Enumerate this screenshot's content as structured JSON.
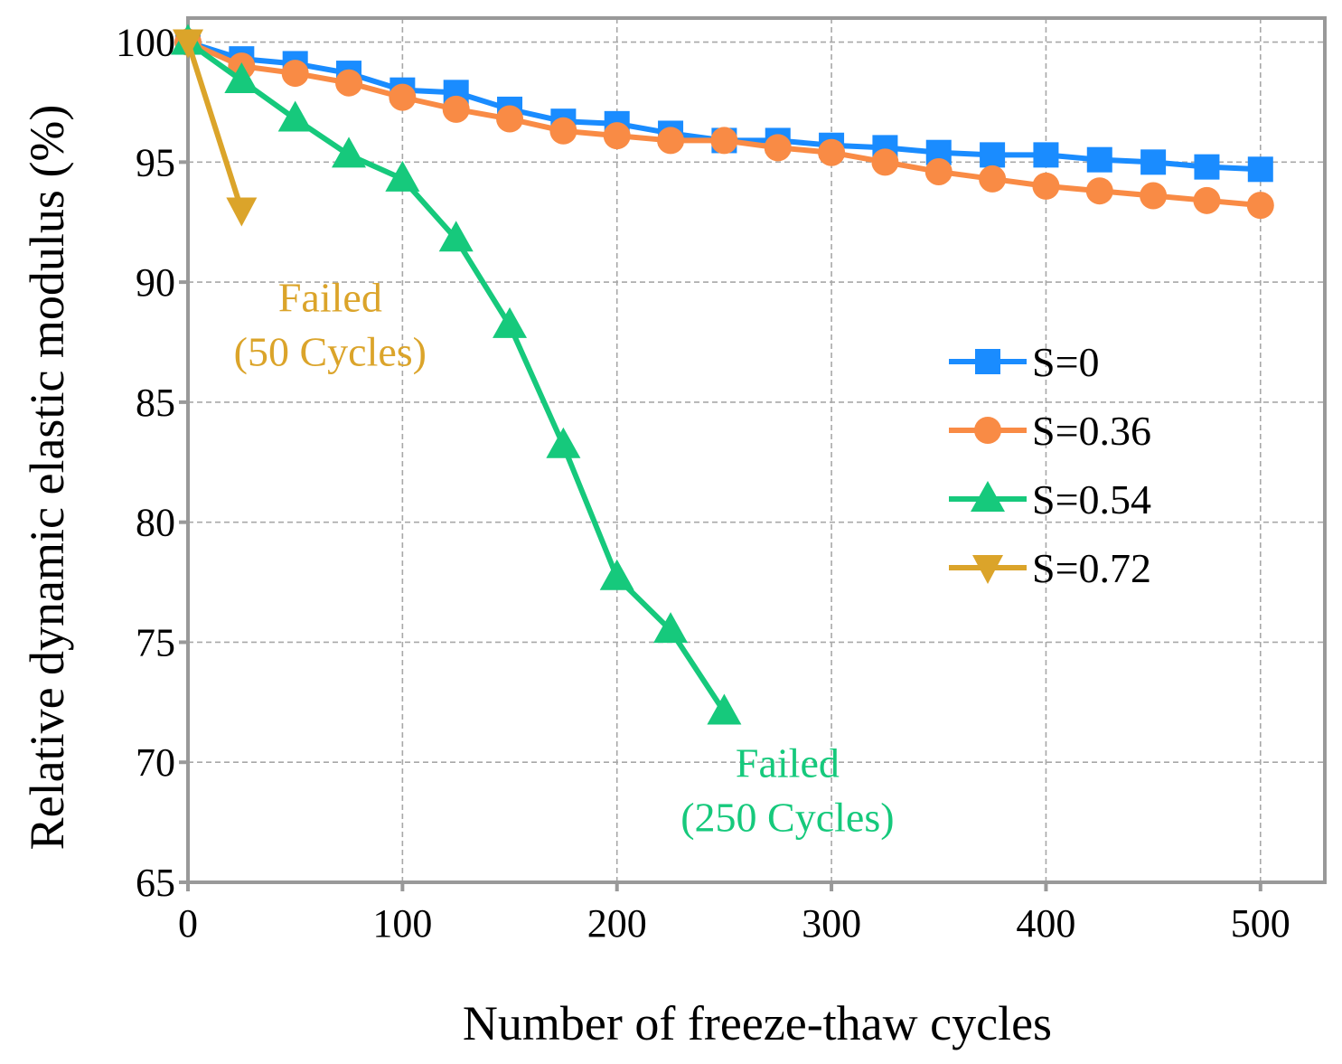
{
  "chart_data": {
    "type": "line",
    "title": "",
    "xlabel": "Number of freeze-thaw cycles",
    "ylabel": "Relative dynamic elastic modulus (%)",
    "xlim": [
      0,
      530
    ],
    "ylim": [
      65,
      101
    ],
    "x_ticks": [
      0,
      100,
      200,
      300,
      400,
      500
    ],
    "x_tick_labels": [
      "0",
      "100",
      "200",
      "300",
      "400",
      "500"
    ],
    "y_ticks": [
      65,
      70,
      75,
      80,
      85,
      90,
      95,
      100
    ],
    "y_tick_labels": [
      "65",
      "70",
      "75",
      "80",
      "85",
      "90",
      "95",
      "100"
    ],
    "grid": true,
    "legend_position": "right",
    "series": [
      {
        "name": "S=0",
        "color": "#1a8cff",
        "marker": "square",
        "x": [
          0,
          25,
          50,
          75,
          100,
          125,
          150,
          175,
          200,
          225,
          250,
          275,
          300,
          325,
          350,
          375,
          400,
          425,
          450,
          475,
          500
        ],
        "values": [
          100,
          99.3,
          99.1,
          98.7,
          98.0,
          97.9,
          97.2,
          96.7,
          96.6,
          96.2,
          95.9,
          95.9,
          95.7,
          95.6,
          95.4,
          95.3,
          95.3,
          95.1,
          95.0,
          94.8,
          94.7
        ]
      },
      {
        "name": "S=0.36",
        "color": "#f98b45",
        "marker": "circle",
        "x": [
          0,
          25,
          50,
          75,
          100,
          125,
          150,
          175,
          200,
          225,
          250,
          275,
          300,
          325,
          350,
          375,
          400,
          425,
          450,
          475,
          500
        ],
        "values": [
          100,
          99.0,
          98.7,
          98.3,
          97.7,
          97.2,
          96.8,
          96.3,
          96.1,
          95.9,
          95.9,
          95.6,
          95.4,
          95.0,
          94.6,
          94.3,
          94.0,
          93.8,
          93.6,
          93.4,
          93.2
        ]
      },
      {
        "name": "S=0.54",
        "color": "#16c97c",
        "marker": "triangle-up",
        "x": [
          0,
          25,
          50,
          75,
          100,
          125,
          150,
          175,
          200,
          225,
          250
        ],
        "values": [
          100,
          98.4,
          96.8,
          95.3,
          94.3,
          91.8,
          88.2,
          83.2,
          77.7,
          75.5,
          72.1
        ]
      },
      {
        "name": "S=0.72",
        "color": "#dba42a",
        "marker": "triangle-down",
        "x": [
          0,
          25
        ],
        "values": [
          100,
          93.0
        ]
      }
    ],
    "annotations": [
      {
        "lines": [
          "Failed",
          "(50 Cycles)"
        ],
        "color": "#dba42a",
        "series": "S=0.72"
      },
      {
        "lines": [
          "Failed",
          "(250 Cycles)"
        ],
        "color": "#16c97c",
        "series": "S=0.54"
      }
    ]
  }
}
